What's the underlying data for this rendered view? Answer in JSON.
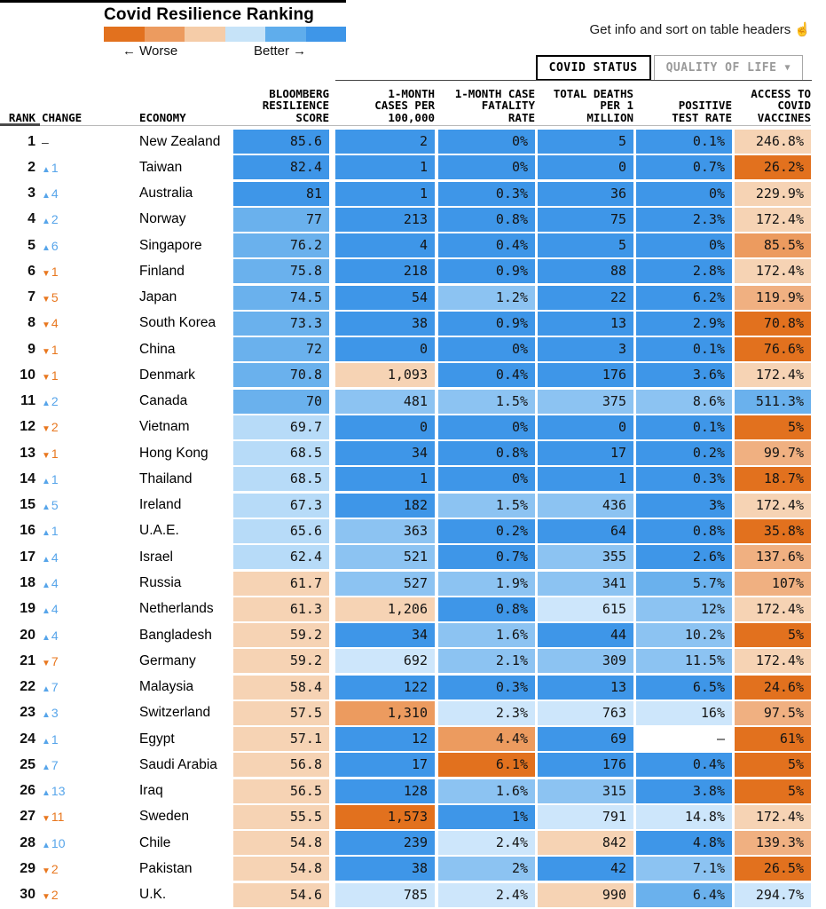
{
  "palette": {
    "b1": "#3E96E8",
    "b2": "#6AB1ED",
    "b3": "#8CC3F2",
    "b4": "#B7DBF8",
    "b5": "#CDE6FB",
    "o1": "#E2711E",
    "o2": "#EC9B5F",
    "o3": "#F0B081",
    "o4": "#F6D3B4",
    "w": "#FFFFFF",
    "change_up": "#57A5EA",
    "change_down": "#E8771F"
  },
  "header": {
    "title": "Covid Resilience Ranking",
    "legend": {
      "colors": [
        "#E2711E",
        "#EC9B5F",
        "#F5CCA8",
        "#C6E3F8",
        "#5FADEC",
        "#3E96E8"
      ],
      "worse_label": "← Worse",
      "better_label": "Better →"
    },
    "hint": "Get info and sort on table headers",
    "hint_icon": "☝",
    "tabs": [
      {
        "label": "COVID STATUS",
        "active": true
      },
      {
        "label": "QUALITY OF LIFE",
        "active": false,
        "dropdown_icon": "▼"
      }
    ]
  },
  "columns_display": {
    "rank": "RANK",
    "change": "CHANGE",
    "economy": "ECONOMY",
    "score": "BLOOMBERG\nRESILIENCE\nSCORE",
    "cases": "1-MONTH\nCASES PER\n100,000",
    "fatality": "1-MONTH CASE\nFATALITY\nRATE",
    "deaths": "TOTAL DEATHS\nPER 1\nMILLION",
    "positive": "POSITIVE\nTEST RATE",
    "access": "ACCESS TO\nCOVID\nVACCINES"
  },
  "chart_data": {
    "type": "table",
    "title": "Covid Resilience Ranking",
    "columns": [
      "Rank",
      "Change",
      "Economy",
      "Bloomberg Resilience Score",
      "1-Month Cases per 100,000",
      "1-Month Case Fatality Rate",
      "Total Deaths per 1 Million",
      "Positive Test Rate",
      "Access to Covid Vaccines"
    ],
    "rows": [
      {
        "rank": "1",
        "change_dir": "none",
        "change": "–",
        "economy": "New Zealand",
        "cells": [
          [
            "85.6",
            "b1"
          ],
          [
            "2",
            "b1"
          ],
          [
            "0%",
            "b1"
          ],
          [
            "5",
            "b1"
          ],
          [
            "0.1%",
            "b1"
          ],
          [
            "246.8%",
            "o4"
          ]
        ]
      },
      {
        "rank": "2",
        "change_dir": "up",
        "change": "1",
        "economy": "Taiwan",
        "cells": [
          [
            "82.4",
            "b1"
          ],
          [
            "1",
            "b1"
          ],
          [
            "0%",
            "b1"
          ],
          [
            "0",
            "b1"
          ],
          [
            "0.7%",
            "b1"
          ],
          [
            "26.2%",
            "o1"
          ]
        ]
      },
      {
        "rank": "3",
        "change_dir": "up",
        "change": "4",
        "economy": "Australia",
        "cells": [
          [
            "81",
            "b1"
          ],
          [
            "1",
            "b1"
          ],
          [
            "0.3%",
            "b1"
          ],
          [
            "36",
            "b1"
          ],
          [
            "0%",
            "b1"
          ],
          [
            "229.9%",
            "o4"
          ]
        ]
      },
      {
        "rank": "4",
        "change_dir": "up",
        "change": "2",
        "economy": "Norway",
        "cells": [
          [
            "77",
            "b2"
          ],
          [
            "213",
            "b1"
          ],
          [
            "0.8%",
            "b1"
          ],
          [
            "75",
            "b1"
          ],
          [
            "2.3%",
            "b1"
          ],
          [
            "172.4%",
            "o4"
          ]
        ]
      },
      {
        "rank": "5",
        "change_dir": "up",
        "change": "6",
        "economy": "Singapore",
        "cells": [
          [
            "76.2",
            "b2"
          ],
          [
            "4",
            "b1"
          ],
          [
            "0.4%",
            "b1"
          ],
          [
            "5",
            "b1"
          ],
          [
            "0%",
            "b1"
          ],
          [
            "85.5%",
            "o2"
          ]
        ]
      },
      {
        "rank": "6",
        "change_dir": "down",
        "change": "1",
        "economy": "Finland",
        "cells": [
          [
            "75.8",
            "b2"
          ],
          [
            "218",
            "b1"
          ],
          [
            "0.9%",
            "b1"
          ],
          [
            "88",
            "b1"
          ],
          [
            "2.8%",
            "b1"
          ],
          [
            "172.4%",
            "o4"
          ]
        ]
      },
      {
        "rank": "7",
        "change_dir": "down",
        "change": "5",
        "economy": "Japan",
        "cells": [
          [
            "74.5",
            "b2"
          ],
          [
            "54",
            "b1"
          ],
          [
            "1.2%",
            "b3"
          ],
          [
            "22",
            "b1"
          ],
          [
            "6.2%",
            "b1"
          ],
          [
            "119.9%",
            "o3"
          ]
        ]
      },
      {
        "rank": "8",
        "change_dir": "down",
        "change": "4",
        "economy": "South Korea",
        "cells": [
          [
            "73.3",
            "b2"
          ],
          [
            "38",
            "b1"
          ],
          [
            "0.9%",
            "b1"
          ],
          [
            "13",
            "b1"
          ],
          [
            "2.9%",
            "b1"
          ],
          [
            "70.8%",
            "o1"
          ]
        ]
      },
      {
        "rank": "9",
        "change_dir": "down",
        "change": "1",
        "economy": "China",
        "cells": [
          [
            "72",
            "b2"
          ],
          [
            "0",
            "b1"
          ],
          [
            "0%",
            "b1"
          ],
          [
            "3",
            "b1"
          ],
          [
            "0.1%",
            "b1"
          ],
          [
            "76.6%",
            "o1"
          ]
        ]
      },
      {
        "rank": "10",
        "change_dir": "down",
        "change": "1",
        "economy": "Denmark",
        "cells": [
          [
            "70.8",
            "b2"
          ],
          [
            "1,093",
            "o4"
          ],
          [
            "0.4%",
            "b1"
          ],
          [
            "176",
            "b1"
          ],
          [
            "3.6%",
            "b1"
          ],
          [
            "172.4%",
            "o4"
          ]
        ]
      },
      {
        "rank": "11",
        "change_dir": "up",
        "change": "2",
        "economy": "Canada",
        "cells": [
          [
            "70",
            "b2"
          ],
          [
            "481",
            "b3"
          ],
          [
            "1.5%",
            "b3"
          ],
          [
            "375",
            "b3"
          ],
          [
            "8.6%",
            "b3"
          ],
          [
            "511.3%",
            "b2"
          ]
        ]
      },
      {
        "rank": "12",
        "change_dir": "down",
        "change": "2",
        "economy": "Vietnam",
        "cells": [
          [
            "69.7",
            "b4"
          ],
          [
            "0",
            "b1"
          ],
          [
            "0%",
            "b1"
          ],
          [
            "0",
            "b1"
          ],
          [
            "0.1%",
            "b1"
          ],
          [
            "5%",
            "o1"
          ]
        ]
      },
      {
        "rank": "13",
        "change_dir": "down",
        "change": "1",
        "economy": "Hong Kong",
        "cells": [
          [
            "68.5",
            "b4"
          ],
          [
            "34",
            "b1"
          ],
          [
            "0.8%",
            "b1"
          ],
          [
            "17",
            "b1"
          ],
          [
            "0.2%",
            "b1"
          ],
          [
            "99.7%",
            "o3"
          ]
        ]
      },
      {
        "rank": "14",
        "change_dir": "up",
        "change": "1",
        "economy": "Thailand",
        "cells": [
          [
            "68.5",
            "b4"
          ],
          [
            "1",
            "b1"
          ],
          [
            "0%",
            "b1"
          ],
          [
            "1",
            "b1"
          ],
          [
            "0.3%",
            "b1"
          ],
          [
            "18.7%",
            "o1"
          ]
        ]
      },
      {
        "rank": "15",
        "change_dir": "up",
        "change": "5",
        "economy": "Ireland",
        "cells": [
          [
            "67.3",
            "b4"
          ],
          [
            "182",
            "b1"
          ],
          [
            "1.5%",
            "b3"
          ],
          [
            "436",
            "b3"
          ],
          [
            "3%",
            "b1"
          ],
          [
            "172.4%",
            "o4"
          ]
        ]
      },
      {
        "rank": "16",
        "change_dir": "up",
        "change": "1",
        "economy": "U.A.E.",
        "cells": [
          [
            "65.6",
            "b4"
          ],
          [
            "363",
            "b3"
          ],
          [
            "0.2%",
            "b1"
          ],
          [
            "64",
            "b1"
          ],
          [
            "0.8%",
            "b1"
          ],
          [
            "35.8%",
            "o1"
          ]
        ]
      },
      {
        "rank": "17",
        "change_dir": "up",
        "change": "4",
        "economy": "Israel",
        "cells": [
          [
            "62.4",
            "b4"
          ],
          [
            "521",
            "b3"
          ],
          [
            "0.7%",
            "b1"
          ],
          [
            "355",
            "b3"
          ],
          [
            "2.6%",
            "b1"
          ],
          [
            "137.6%",
            "o3"
          ]
        ]
      },
      {
        "rank": "18",
        "change_dir": "up",
        "change": "4",
        "economy": "Russia",
        "cells": [
          [
            "61.7",
            "o4"
          ],
          [
            "527",
            "b3"
          ],
          [
            "1.9%",
            "b3"
          ],
          [
            "341",
            "b3"
          ],
          [
            "5.7%",
            "b2"
          ],
          [
            "107%",
            "o3"
          ]
        ]
      },
      {
        "rank": "19",
        "change_dir": "up",
        "change": "4",
        "economy": "Netherlands",
        "cells": [
          [
            "61.3",
            "o4"
          ],
          [
            "1,206",
            "o4"
          ],
          [
            "0.8%",
            "b1"
          ],
          [
            "615",
            "b5"
          ],
          [
            "12%",
            "b3"
          ],
          [
            "172.4%",
            "o4"
          ]
        ]
      },
      {
        "rank": "20",
        "change_dir": "up",
        "change": "4",
        "economy": "Bangladesh",
        "cells": [
          [
            "59.2",
            "o4"
          ],
          [
            "34",
            "b1"
          ],
          [
            "1.6%",
            "b3"
          ],
          [
            "44",
            "b1"
          ],
          [
            "10.2%",
            "b3"
          ],
          [
            "5%",
            "o1"
          ]
        ]
      },
      {
        "rank": "21",
        "change_dir": "down",
        "change": "7",
        "economy": "Germany",
        "cells": [
          [
            "59.2",
            "o4"
          ],
          [
            "692",
            "b5"
          ],
          [
            "2.1%",
            "b3"
          ],
          [
            "309",
            "b3"
          ],
          [
            "11.5%",
            "b3"
          ],
          [
            "172.4%",
            "o4"
          ]
        ]
      },
      {
        "rank": "22",
        "change_dir": "up",
        "change": "7",
        "economy": "Malaysia",
        "cells": [
          [
            "58.4",
            "o4"
          ],
          [
            "122",
            "b1"
          ],
          [
            "0.3%",
            "b1"
          ],
          [
            "13",
            "b1"
          ],
          [
            "6.5%",
            "b1"
          ],
          [
            "24.6%",
            "o1"
          ]
        ]
      },
      {
        "rank": "23",
        "change_dir": "up",
        "change": "3",
        "economy": "Switzerland",
        "cells": [
          [
            "57.5",
            "o4"
          ],
          [
            "1,310",
            "o2"
          ],
          [
            "2.3%",
            "b5"
          ],
          [
            "763",
            "b5"
          ],
          [
            "16%",
            "b5"
          ],
          [
            "97.5%",
            "o3"
          ]
        ]
      },
      {
        "rank": "24",
        "change_dir": "up",
        "change": "1",
        "economy": "Egypt",
        "cells": [
          [
            "57.1",
            "o4"
          ],
          [
            "12",
            "b1"
          ],
          [
            "4.4%",
            "o2"
          ],
          [
            "69",
            "b1"
          ],
          [
            "–",
            "w"
          ],
          [
            "61%",
            "o1"
          ]
        ]
      },
      {
        "rank": "25",
        "change_dir": "up",
        "change": "7",
        "economy": "Saudi Arabia",
        "cells": [
          [
            "56.8",
            "o4"
          ],
          [
            "17",
            "b1"
          ],
          [
            "6.1%",
            "o1"
          ],
          [
            "176",
            "b1"
          ],
          [
            "0.4%",
            "b1"
          ],
          [
            "5%",
            "o1"
          ]
        ]
      },
      {
        "rank": "26",
        "change_dir": "up",
        "change": "13",
        "economy": "Iraq",
        "cells": [
          [
            "56.5",
            "o4"
          ],
          [
            "128",
            "b1"
          ],
          [
            "1.6%",
            "b3"
          ],
          [
            "315",
            "b3"
          ],
          [
            "3.8%",
            "b1"
          ],
          [
            "5%",
            "o1"
          ]
        ]
      },
      {
        "rank": "27",
        "change_dir": "down",
        "change": "11",
        "economy": "Sweden",
        "cells": [
          [
            "55.5",
            "o4"
          ],
          [
            "1,573",
            "o1"
          ],
          [
            "1%",
            "b1"
          ],
          [
            "791",
            "b5"
          ],
          [
            "14.8%",
            "b5"
          ],
          [
            "172.4%",
            "o4"
          ]
        ]
      },
      {
        "rank": "28",
        "change_dir": "up",
        "change": "10",
        "economy": "Chile",
        "cells": [
          [
            "54.8",
            "o4"
          ],
          [
            "239",
            "b1"
          ],
          [
            "2.4%",
            "b5"
          ],
          [
            "842",
            "o4"
          ],
          [
            "4.8%",
            "b1"
          ],
          [
            "139.3%",
            "o3"
          ]
        ]
      },
      {
        "rank": "29",
        "change_dir": "down",
        "change": "2",
        "economy": "Pakistan",
        "cells": [
          [
            "54.8",
            "o4"
          ],
          [
            "38",
            "b1"
          ],
          [
            "2%",
            "b3"
          ],
          [
            "42",
            "b1"
          ],
          [
            "7.1%",
            "b3"
          ],
          [
            "26.5%",
            "o1"
          ]
        ]
      },
      {
        "rank": "30",
        "change_dir": "down",
        "change": "2",
        "economy": "U.K.",
        "cells": [
          [
            "54.6",
            "o4"
          ],
          [
            "785",
            "b5"
          ],
          [
            "2.4%",
            "b5"
          ],
          [
            "990",
            "o4"
          ],
          [
            "6.4%",
            "b2"
          ],
          [
            "294.7%",
            "b5"
          ]
        ]
      }
    ]
  }
}
